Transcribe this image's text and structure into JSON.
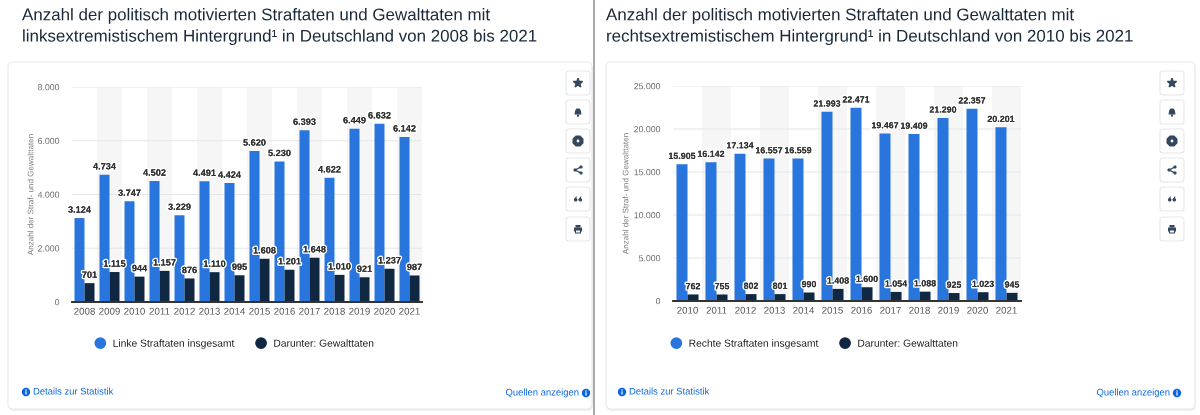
{
  "chart_data": [
    {
      "type": "bar",
      "title": "Anzahl der politisch motivierten Straftaten und Gewalttaten mit linksextremistischem Hintergrund¹ in Deutschland von 2008 bis 2021",
      "ylabel": "Anzahl der Straf- und Gewalttaten",
      "categories": [
        "2008",
        "2009",
        "2010",
        "2011",
        "2012",
        "2013",
        "2014",
        "2015",
        "2016",
        "2017",
        "2018",
        "2019",
        "2020",
        "2021"
      ],
      "series": [
        {
          "name": "Linke Straftaten insgesamt",
          "color": "#2876dd",
          "values": [
            3124,
            4734,
            3747,
            4502,
            3229,
            4491,
            4424,
            5620,
            5230,
            6393,
            4622,
            6449,
            6632,
            6142
          ],
          "value_labels": [
            "3.124",
            "4.734",
            "3.747",
            "4.502",
            "3.229",
            "4.491",
            "4.424",
            "5.620",
            "5.230",
            "6.393",
            "4.622",
            "6.449",
            "6.632",
            "6.142"
          ]
        },
        {
          "name": "Darunter: Gewalttaten",
          "color": "#0f2740",
          "values": [
            701,
            1115,
            944,
            1157,
            876,
            1110,
            995,
            1608,
            1201,
            1648,
            1010,
            921,
            1237,
            987
          ],
          "value_labels": [
            "701",
            "1.115",
            "944",
            "1.157",
            "876",
            "1.110",
            "995",
            "1.608",
            "1.201",
            "1.648",
            "1.010",
            "921",
            "1.237",
            "987"
          ]
        }
      ],
      "ylim": [
        0,
        8000
      ],
      "yticks": [
        0,
        {
          "value": 2000,
          "label": "2.000"
        },
        {
          "value": 4000,
          "label": "4.000"
        },
        {
          "value": 6000,
          "label": "6.000"
        },
        {
          "value": 8000,
          "label": "8.000"
        }
      ],
      "grid": "y",
      "legend": "bottom",
      "bands": [
        {
          "axis": "x",
          "from": "2009",
          "to": "2009",
          "color": "#f6f6f6"
        },
        {
          "axis": "x",
          "from": "2011",
          "to": "2011",
          "color": "#f6f6f6"
        },
        {
          "axis": "x",
          "from": "2013",
          "to": "2013",
          "color": "#f6f6f6"
        },
        {
          "axis": "x",
          "from": "2015",
          "to": "2015",
          "color": "#f6f6f6"
        },
        {
          "axis": "x",
          "from": "2017",
          "to": "2017",
          "color": "#f6f6f6"
        },
        {
          "axis": "x",
          "from": "2019",
          "to": "2019",
          "color": "#f6f6f6"
        },
        {
          "axis": "x",
          "from": "2021",
          "to": "2021",
          "color": "#f6f6f6"
        }
      ],
      "annotations": [
        "Details zur Statistik",
        "Quellen anzeigen"
      ]
    },
    {
      "type": "bar",
      "title": "Anzahl der politisch motivierten Straftaten und Gewalttaten mit rechtsextremistischem Hintergrund¹ in Deutschland von 2010 bis 2021",
      "ylabel": "Anzahl der Straf- und Gewalttaten",
      "categories": [
        "2010",
        "2011",
        "2012",
        "2013",
        "2014",
        "2015",
        "2016",
        "2017",
        "2018",
        "2019",
        "2020",
        "2021"
      ],
      "series": [
        {
          "name": "Rechte Straftaten insgesamt",
          "color": "#2876dd",
          "values": [
            15905,
            16142,
            17134,
            16557,
            16559,
            21993,
            22471,
            19467,
            19409,
            21290,
            22357,
            20201
          ],
          "value_labels": [
            "15.905",
            "16.142",
            "17.134",
            "16.557",
            "16.559",
            "21.993",
            "22.471",
            "19.467",
            "19.409",
            "21.290",
            "22.357",
            "20.201"
          ]
        },
        {
          "name": "Darunter: Gewalttaten",
          "color": "#0f2740",
          "values": [
            762,
            755,
            802,
            801,
            990,
            1408,
            1600,
            1054,
            1088,
            925,
            1023,
            945
          ],
          "value_labels": [
            "762",
            "755",
            "802",
            "801",
            "990",
            "1.408",
            "1.600",
            "1.054",
            "1.088",
            "925",
            "1.023",
            "945"
          ]
        }
      ],
      "ylim": [
        0,
        25000
      ],
      "yticks": [
        0,
        {
          "value": 5000,
          "label": "5.000"
        },
        {
          "value": 10000,
          "label": "10.000"
        },
        {
          "value": 15000,
          "label": "15.000"
        },
        {
          "value": 20000,
          "label": "20.000"
        },
        {
          "value": 25000,
          "label": "25.000"
        }
      ],
      "grid": "y",
      "legend": "bottom",
      "bands": [
        {
          "axis": "x",
          "from": "2011",
          "to": "2011",
          "color": "#f6f6f6"
        },
        {
          "axis": "x",
          "from": "2013",
          "to": "2013",
          "color": "#f6f6f6"
        },
        {
          "axis": "x",
          "from": "2015",
          "to": "2015",
          "color": "#f6f6f6"
        },
        {
          "axis": "x",
          "from": "2017",
          "to": "2017",
          "color": "#f6f6f6"
        },
        {
          "axis": "x",
          "from": "2019",
          "to": "2019",
          "color": "#f6f6f6"
        },
        {
          "axis": "x",
          "from": "2021",
          "to": "2021",
          "color": "#f6f6f6"
        }
      ],
      "annotations": [
        "Details zur Statistik",
        "Quellen anzeigen"
      ]
    }
  ]
}
